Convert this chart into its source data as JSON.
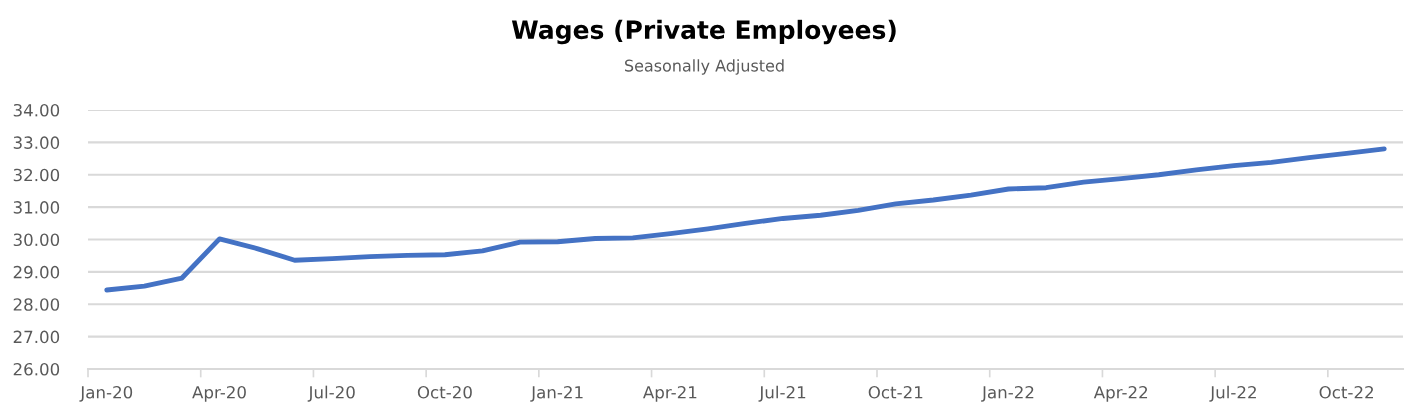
{
  "chart_data": {
    "type": "line",
    "title": "Wages (Private Employees)",
    "subtitle": "Seasonally Adjusted",
    "categories": [
      "Jan-20",
      null,
      null,
      "Apr-20",
      null,
      null,
      "Jul-20",
      null,
      null,
      "Oct-20",
      null,
      null,
      "Jan-21",
      null,
      null,
      "Apr-21",
      null,
      null,
      "Jul-21",
      null,
      null,
      "Oct-21",
      null,
      null,
      "Jan-22",
      null,
      null,
      "Apr-22",
      null,
      null,
      "Jul-22",
      null,
      null,
      "Oct-22",
      null
    ],
    "series": [
      {
        "color": "#4472c4",
        "values": [
          28.44,
          28.56,
          28.81,
          30.02,
          29.72,
          29.36,
          29.41,
          29.47,
          29.51,
          29.53,
          29.65,
          29.92,
          29.93,
          30.03,
          30.05,
          30.18,
          30.33,
          30.5,
          30.65,
          30.75,
          30.9,
          31.1,
          31.22,
          31.37,
          31.56,
          31.6,
          31.77,
          31.88,
          32.0,
          32.15,
          32.28,
          32.38,
          32.53,
          32.66,
          32.8
        ]
      }
    ],
    "ylim": [
      26,
      34
    ],
    "yticks": [
      {
        "value": 26,
        "label": "26.00"
      },
      {
        "value": 27,
        "label": "27.00"
      },
      {
        "value": 28,
        "label": "28.00"
      },
      {
        "value": 29,
        "label": "29.00"
      },
      {
        "value": 30,
        "label": "30.00"
      },
      {
        "value": 31,
        "label": "31.00"
      },
      {
        "value": 32,
        "label": "32.00"
      },
      {
        "value": 33,
        "label": "33.00"
      },
      {
        "value": 34,
        "label": "34.00"
      }
    ],
    "grid": "y",
    "marker": "none",
    "line_style": "solid"
  }
}
